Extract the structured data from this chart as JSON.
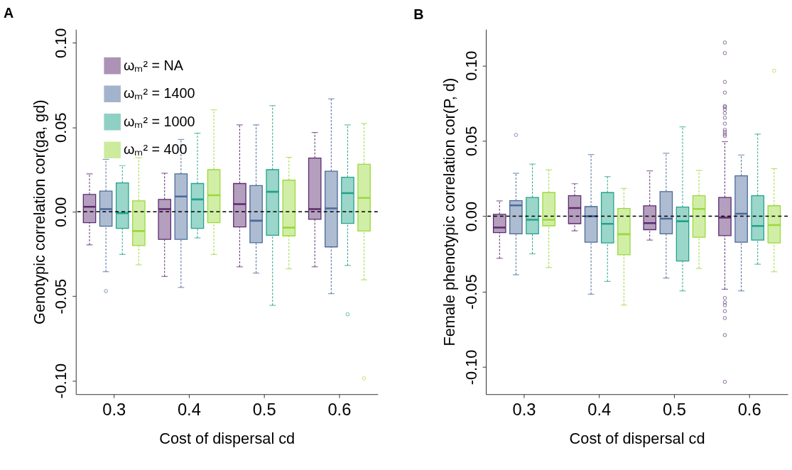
{
  "chart_data": [
    {
      "type": "box",
      "title": "A",
      "xlabel": "Cost of dispersal cd",
      "ylabel": "Genotypic correlation cor(ga, gd)",
      "categories": [
        "0.3",
        "0.4",
        "0.5",
        "0.6"
      ],
      "ylim": [
        -0.108,
        0.108
      ],
      "yticks": [
        {
          "value": -0.1,
          "label": "-0.10"
        },
        {
          "value": -0.05,
          "label": "-0.05"
        },
        {
          "value": 0,
          "label": "0.00"
        },
        {
          "value": 0.05,
          "label": "0.05"
        },
        {
          "value": 0.1,
          "label": "0.10"
        }
      ],
      "grid": false,
      "legend": "top left",
      "ref_lines": [
        {
          "axis": "y",
          "value": 0,
          "label": null,
          "color": "#000000",
          "line_style": "dashed"
        }
      ],
      "series": [
        {
          "name": "ωₘ² = NA",
          "color": "#5c2a6f",
          "boxes": [
            {
              "low": -0.0196,
              "q1": -0.0065,
              "median": 0.0029,
              "q3": 0.0102,
              "high": 0.0224
            },
            {
              "low": -0.0383,
              "q1": -0.0163,
              "median": 0.0016,
              "q3": 0.0073,
              "high": 0.0228
            },
            {
              "low": -0.0326,
              "q1": -0.009,
              "median": 0.0045,
              "q3": 0.0167,
              "high": 0.0514
            },
            {
              "low": -0.0326,
              "q1": -0.0045,
              "median": 0.0016,
              "q3": 0.0318,
              "high": 0.0469
            }
          ]
        },
        {
          "name": "ωₘ² = 1400",
          "color": "#4a6a9a",
          "boxes": [
            {
              "low": -0.0355,
              "q1": -0.0086,
              "median": 0.0016,
              "q3": 0.0122,
              "high": 0.031,
              "outliers": [
                -0.047
              ]
            },
            {
              "low": -0.0448,
              "q1": -0.0163,
              "median": 0.009,
              "q3": 0.0224,
              "high": 0.0428
            },
            {
              "low": -0.0363,
              "q1": -0.0183,
              "median": -0.0053,
              "q3": 0.0155,
              "high": 0.0514
            },
            {
              "low": -0.0485,
              "q1": -0.0208,
              "median": 0.002,
              "q3": 0.024,
              "high": 0.0668
            }
          ]
        },
        {
          "name": "ωₘ² = 1000",
          "color": "#21a38a",
          "boxes": [
            {
              "low": -0.0253,
              "q1": -0.0098,
              "median": -0.0008,
              "q3": 0.0171,
              "high": 0.0273
            },
            {
              "low": -0.0155,
              "q1": -0.0098,
              "median": 0.0073,
              "q3": 0.0167,
              "high": 0.0465
            },
            {
              "low": -0.0554,
              "q1": -0.0139,
              "median": 0.0118,
              "q3": 0.0249,
              "high": 0.0628
            },
            {
              "low": -0.0318,
              "q1": -0.0069,
              "median": 0.011,
              "q3": 0.0204,
              "high": 0.0514,
              "outliers": [
                -0.0607
              ]
            }
          ]
        },
        {
          "name": "ωₘ² = 400",
          "color": "#9ad93b",
          "boxes": [
            {
              "low": -0.0314,
              "q1": -0.02,
              "median": -0.0114,
              "q3": 0.0065,
              "high": 0.032
            },
            {
              "low": -0.0253,
              "q1": -0.0065,
              "median": 0.0098,
              "q3": 0.0249,
              "high": 0.0603
            },
            {
              "low": -0.0338,
              "q1": -0.0143,
              "median": -0.0094,
              "q3": 0.0187,
              "high": 0.0322
            },
            {
              "low": -0.0403,
              "q1": -0.0114,
              "median": 0.0082,
              "q3": 0.0281,
              "high": 0.0522,
              "outliers": [
                -0.0986
              ]
            }
          ]
        }
      ]
    },
    {
      "type": "box",
      "title": "B",
      "xlabel": "Cost of dispersal cd",
      "ylabel": "Female phenotypic correlation cor(P, d)",
      "categories": [
        "0.3",
        "0.4",
        "0.5",
        "0.6"
      ],
      "ylim": [
        -0.118,
        0.124
      ],
      "yticks": [
        {
          "value": -0.1,
          "label": "-0.10"
        },
        {
          "value": -0.05,
          "label": "-0.05"
        },
        {
          "value": 0,
          "label": "0.00"
        },
        {
          "value": 0.05,
          "label": "0.05"
        },
        {
          "value": 0.1,
          "label": "0.10"
        }
      ],
      "grid": false,
      "legend": false,
      "ref_lines": [
        {
          "axis": "y",
          "value": 0,
          "label": null,
          "color": "#000000",
          "line_style": "dashed"
        }
      ],
      "series": [
        {
          "color": "#5c2a6f",
          "boxes": [
            {
              "low": -0.0279,
              "q1": -0.0108,
              "median": -0.0075,
              "q3": 0.0013,
              "high": 0.0102
            },
            {
              "low": -0.0097,
              "q1": -0.0049,
              "median": 0.0055,
              "q3": 0.0136,
              "high": 0.0216
            },
            {
              "low": -0.0158,
              "q1": -0.0089,
              "median": -0.0045,
              "q3": 0.0069,
              "high": 0.0301
            },
            {
              "low": -0.0484,
              "q1": -0.0128,
              "median": -0.0009,
              "q3": 0.0125,
              "high": 0.0495,
              "outliers": [
                0.1152,
                0.1082,
                0.0891,
                0.082,
                0.0731,
                0.0723,
                0.0708,
                0.0684,
                0.0653,
                0.0614,
                0.0573,
                0.0559,
                0.0543,
                0.0532,
                -0.0542,
                -0.0571,
                -0.059,
                -0.0629,
                -0.0675,
                -0.0788,
                -0.1098
              ]
            }
          ]
        },
        {
          "color": "#4a6a9a",
          "boxes": [
            {
              "low": -0.0388,
              "q1": -0.0117,
              "median": 0.0072,
              "q3": 0.0103,
              "high": 0.0285,
              "outliers": [
                0.0539
              ]
            },
            {
              "low": -0.0517,
              "q1": -0.0172,
              "median": 0.0,
              "q3": 0.0064,
              "high": 0.0409
            },
            {
              "low": -0.041,
              "q1": -0.0117,
              "median": -0.0016,
              "q3": 0.0164,
              "high": 0.0418
            },
            {
              "low": -0.0495,
              "q1": -0.0172,
              "median": 0.0017,
              "q3": 0.0268,
              "high": 0.0406
            }
          ]
        },
        {
          "color": "#21a38a",
          "boxes": [
            {
              "low": -0.0249,
              "q1": -0.0117,
              "median": -0.0023,
              "q3": 0.0125,
              "high": 0.0346
            },
            {
              "low": -0.0432,
              "q1": -0.0177,
              "median": -0.005,
              "q3": 0.0157,
              "high": 0.0263
            },
            {
              "low": -0.0495,
              "q1": -0.0297,
              "median": -0.0033,
              "q3": 0.0061,
              "high": 0.0593
            },
            {
              "low": -0.0318,
              "q1": -0.0158,
              "median": -0.0064,
              "q3": 0.0136,
              "high": 0.0545
            }
          ]
        },
        {
          "color": "#9ad93b",
          "boxes": [
            {
              "low": -0.034,
              "q1": -0.0063,
              "median": -0.0023,
              "q3": 0.0157,
              "high": 0.0308
            },
            {
              "low": -0.0589,
              "q1": -0.0255,
              "median": -0.0119,
              "q3": 0.0052,
              "high": 0.0185
            },
            {
              "low": -0.0346,
              "q1": -0.0139,
              "median": 0.0049,
              "q3": 0.0136,
              "high": 0.0304
            },
            {
              "low": -0.0368,
              "q1": -0.0177,
              "median": -0.0058,
              "q3": 0.007,
              "high": 0.0316,
              "outliers": [
                0.0965
              ]
            }
          ]
        }
      ]
    }
  ]
}
